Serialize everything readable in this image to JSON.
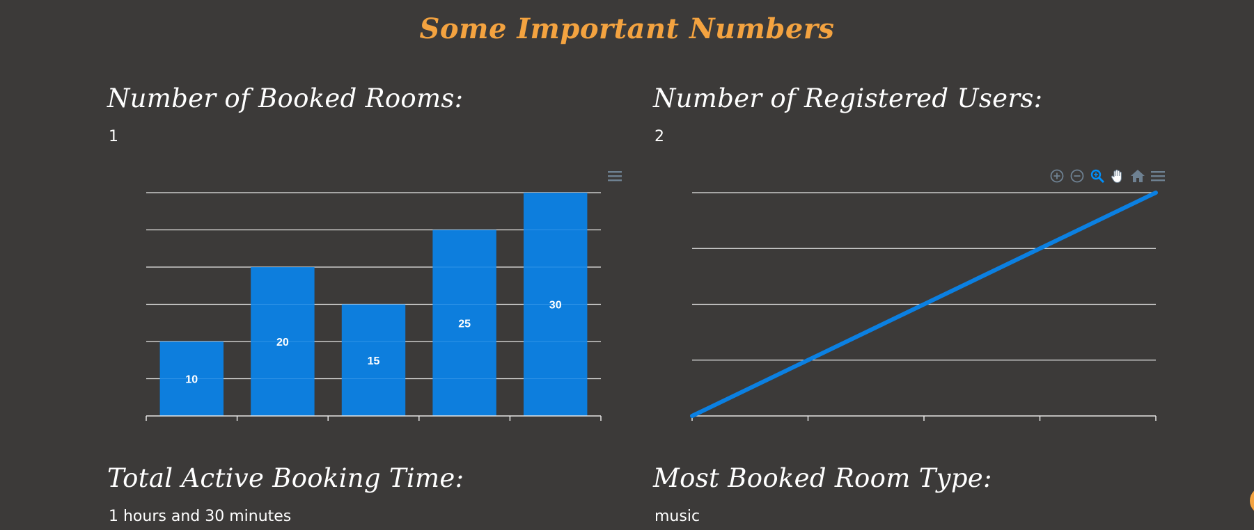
{
  "page": {
    "title": "Some Important Numbers"
  },
  "stats": {
    "booked_rooms": {
      "heading": "Number of Booked Rooms:",
      "value": "1"
    },
    "registered_users": {
      "heading": "Number of Registered Users:",
      "value": "2"
    },
    "active_booking_time": {
      "heading": "Total Active Booking Time:",
      "value": "1 hours and 30 minutes"
    },
    "most_booked_room_type": {
      "heading": "Most Booked Room Type:",
      "value": "music"
    }
  },
  "colors": {
    "accent": "#f4a340",
    "series": "#0b80e2",
    "background": "#3c3a39",
    "grid": "#e6e6e6",
    "toolbar_icon": "#6e8192",
    "toolbar_active": "#008ffb"
  },
  "toolbar": {
    "bar_chart_tools": [
      "menu-icon"
    ],
    "line_chart_tools": [
      "zoom-in-icon",
      "zoom-out-icon",
      "selection-zoom-icon",
      "pan-hand-icon",
      "reset-home-icon",
      "menu-icon"
    ]
  },
  "chart_data": [
    {
      "type": "bar",
      "categories": [
        "",
        "",
        "",
        "",
        ""
      ],
      "values": [
        10,
        20,
        15,
        25,
        30
      ],
      "data_labels": true,
      "grid": true,
      "ylim": [
        0,
        30
      ],
      "title": "",
      "xlabel": "",
      "ylabel": ""
    },
    {
      "type": "line",
      "x": [
        0,
        1,
        2,
        3,
        4
      ],
      "series": [
        {
          "values": [
            0,
            0.5,
            1,
            1.5,
            2
          ]
        }
      ],
      "grid": true,
      "ylim": [
        0,
        2
      ],
      "title": "",
      "xlabel": "",
      "ylabel": ""
    }
  ]
}
